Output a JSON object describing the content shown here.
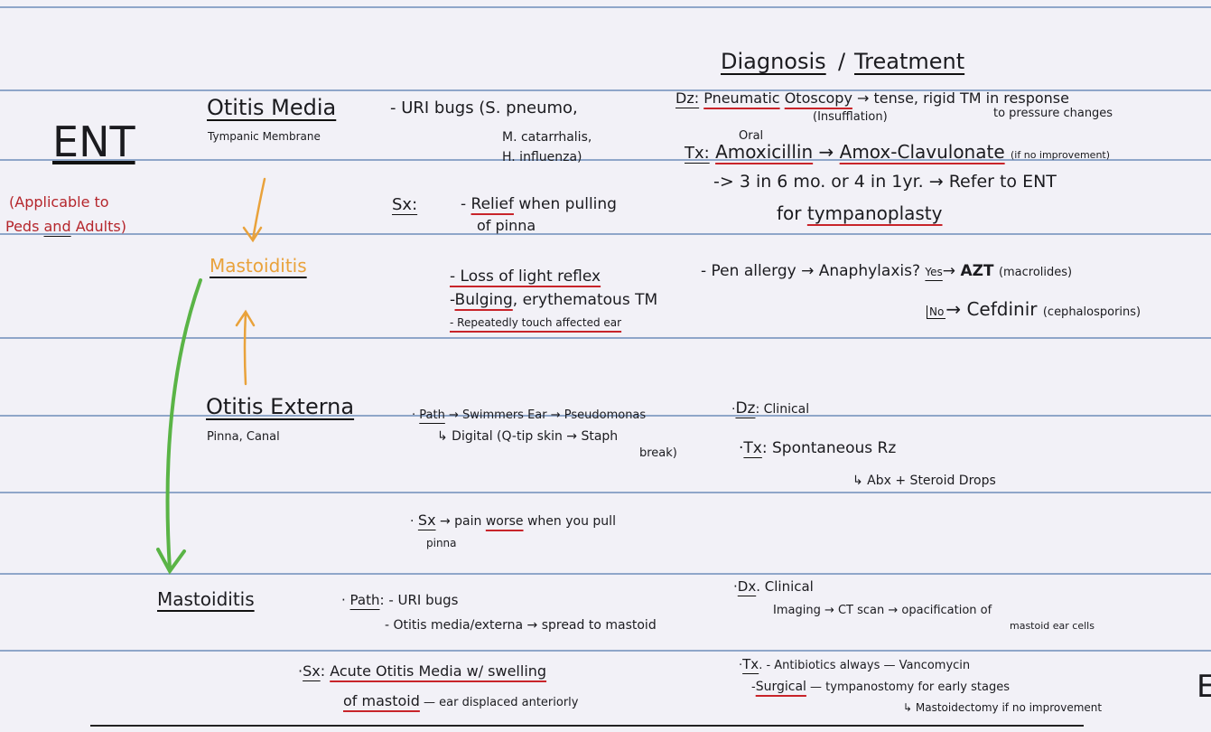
{
  "header": {
    "diagnosis": "Diagnosis",
    "slash": "/",
    "treatment": "Treatment"
  },
  "ent": {
    "title": "ENT",
    "applicable_line1": "(Applicable to",
    "applicable_line2_a": "Peds ",
    "applicable_line2_and": "and",
    "applicable_line2_b": " Adults)"
  },
  "otitis_media": {
    "title": "Otitis Media",
    "subtitle": "Tympanic Membrane",
    "bugs_line1": "- URI bugs (S. pneumo,",
    "bugs_line2": "M. catarrhalis,",
    "bugs_line3": "H. influenza)",
    "sx_label": "Sx:",
    "sx_relief_a": "- ",
    "sx_relief_b": "Relief",
    "sx_relief_c": " when pulling",
    "sx_relief_d": "of pinna",
    "sx_light": "- Loss of light reflex",
    "sx_bulging_a": "-",
    "sx_bulging_b": "Bulging",
    "sx_bulging_c": ", erythematous TM",
    "sx_touch": "- Repeatedly touch affected ear",
    "dz_label": "Dz:",
    "dz_a": "Pneumatic",
    "dz_b": "Otoscopy",
    "dz_c": "→ tense, rigid TM in response",
    "dz_insufflation": "(Insufflation)",
    "dz_pressure": "to pressure changes",
    "oral": "Oral",
    "tx_label": "Tx:",
    "tx_amox": "Amoxicillin",
    "tx_arrow": "→",
    "tx_amox_clav": "Amox-Clavulonate",
    "tx_if_no": "(if no improvement)",
    "tx_refer": "-> 3 in 6 mo. or 4 in 1yr. → Refer to ENT",
    "tx_for": "for ",
    "tx_tympano": "tympanoplasty",
    "pen_allergy": "- Pen allergy → Anaphylaxis?",
    "yes": "Yes",
    "yes_result": "AZT",
    "yes_class": "(macrolides)",
    "no": "No",
    "no_result": "Cefdinir",
    "no_class": "(cephalosporins)"
  },
  "mastoiditis_mid": {
    "label": "Mastoiditis"
  },
  "otitis_externa": {
    "title": "Otitis Externa",
    "subtitle": "Pinna, Canal",
    "path_label": "Path",
    "path_line1": "→ Swimmers Ear → Pseudomonas",
    "path_line2": "↳ Digital (Q-tip skin → Staph",
    "path_line3": "break)",
    "sx_label": "Sx",
    "sx_a": "→ pain ",
    "sx_worse": "worse",
    "sx_b": " when you pull",
    "sx_c": "pinna",
    "dz_label": "Dz",
    "dz_value": ": Clinical",
    "tx_label": "Tx",
    "tx_value": ":  Spontaneous Rz",
    "tx_sub": "↳ Abx + Steroid Drops"
  },
  "mastoiditis": {
    "title": "Mastoiditis",
    "path_label": "Path",
    "path_line1": ": - URI bugs",
    "path_line2": "- Otitis media/externa → spread to mastoid",
    "sx_label": "Sx",
    "sx_a": "Acute Otitis Media w/ swelling",
    "sx_b": "of mastoid",
    "sx_c": " — ear displaced anteriorly",
    "dx_label": "Dx",
    "dx_value": ". Clinical",
    "dx_imaging": "Imaging → CT scan → opacification of",
    "dx_imaging2": "mastoid ear cells",
    "tx_label": "Tx",
    "tx_line1": ". - Antibiotics always — Vancomycin",
    "tx_surgical_a": "-",
    "tx_surgical_b": "Surgical",
    "tx_surgical_c": " — tympanostomy for early stages",
    "tx_line3": "↳ Mastoidectomy if no improvement"
  },
  "edge": {
    "letter": "E"
  },
  "colors": {
    "rule": "#8fa6c9",
    "red": "#c8242a",
    "orange": "#e9a23b",
    "green": "#5ab446"
  }
}
